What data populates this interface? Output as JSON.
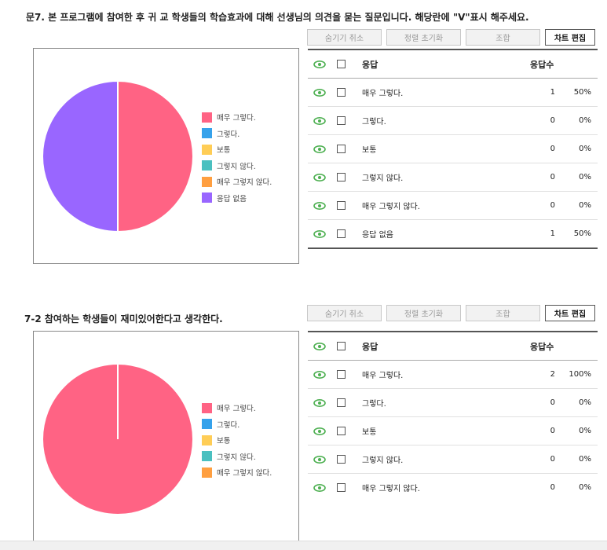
{
  "q1": {
    "title": "문7. 본 프로그램에 참여한 후 귀 교 학생들의 학습효과에 대해 선생님의 의견을 묻는 질문입니다. 해당란에 \"V\"표시 해주세요.",
    "toolbar": {
      "unhide": "숨기기 취소",
      "reset_sort": "정렬 초기화",
      "combine": "조합",
      "edit_chart": "차트 편집"
    },
    "table": {
      "col_response": "응답",
      "col_count": "응답수",
      "rows": [
        {
          "label": "매우 그렇다.",
          "count": "1",
          "pct": "50%"
        },
        {
          "label": "그렇다.",
          "count": "0",
          "pct": "0%"
        },
        {
          "label": "보통",
          "count": "0",
          "pct": "0%"
        },
        {
          "label": "그렇지 않다.",
          "count": "0",
          "pct": "0%"
        },
        {
          "label": "매우 그렇지 않다.",
          "count": "0",
          "pct": "0%"
        },
        {
          "label": "응답 없음",
          "count": "1",
          "pct": "50%"
        }
      ]
    }
  },
  "q2": {
    "title": "7-2 참여하는 학생들이 재미있어한다고 생각한다.",
    "toolbar": {
      "unhide": "숨기기 취소",
      "reset_sort": "정렬 초기화",
      "combine": "조합",
      "edit_chart": "차트 편집"
    },
    "table": {
      "col_response": "응답",
      "col_count": "응답수",
      "rows": [
        {
          "label": "매우 그렇다.",
          "count": "2",
          "pct": "100%"
        },
        {
          "label": "그렇다.",
          "count": "0",
          "pct": "0%"
        },
        {
          "label": "보통",
          "count": "0",
          "pct": "0%"
        },
        {
          "label": "그렇지 않다.",
          "count": "0",
          "pct": "0%"
        },
        {
          "label": "매우 그렇지 않다.",
          "count": "0",
          "pct": "0%"
        }
      ]
    }
  },
  "chart_data": [
    {
      "type": "pie",
      "categories": [
        "매우 그렇다.",
        "그렇다.",
        "보통",
        "그렇지 않다.",
        "매우 그렇지 않다.",
        "응답 없음"
      ],
      "values": [
        1,
        0,
        0,
        0,
        0,
        1
      ],
      "colors": [
        "#ff6384",
        "#36a2eb",
        "#ffcd56",
        "#4bc0c0",
        "#ff9f40",
        "#9966ff"
      ],
      "legend": "right"
    },
    {
      "type": "pie",
      "categories": [
        "매우 그렇다.",
        "그렇다.",
        "보통",
        "그렇지 않다.",
        "매우 그렇지 않다."
      ],
      "values": [
        2,
        0,
        0,
        0,
        0
      ],
      "colors": [
        "#ff6384",
        "#36a2eb",
        "#ffcd56",
        "#4bc0c0",
        "#ff9f40"
      ],
      "legend": "right"
    }
  ],
  "icons": {
    "visibility": "eye-icon",
    "select": "checkbox"
  },
  "colors": {
    "eye": "#4caf50"
  }
}
